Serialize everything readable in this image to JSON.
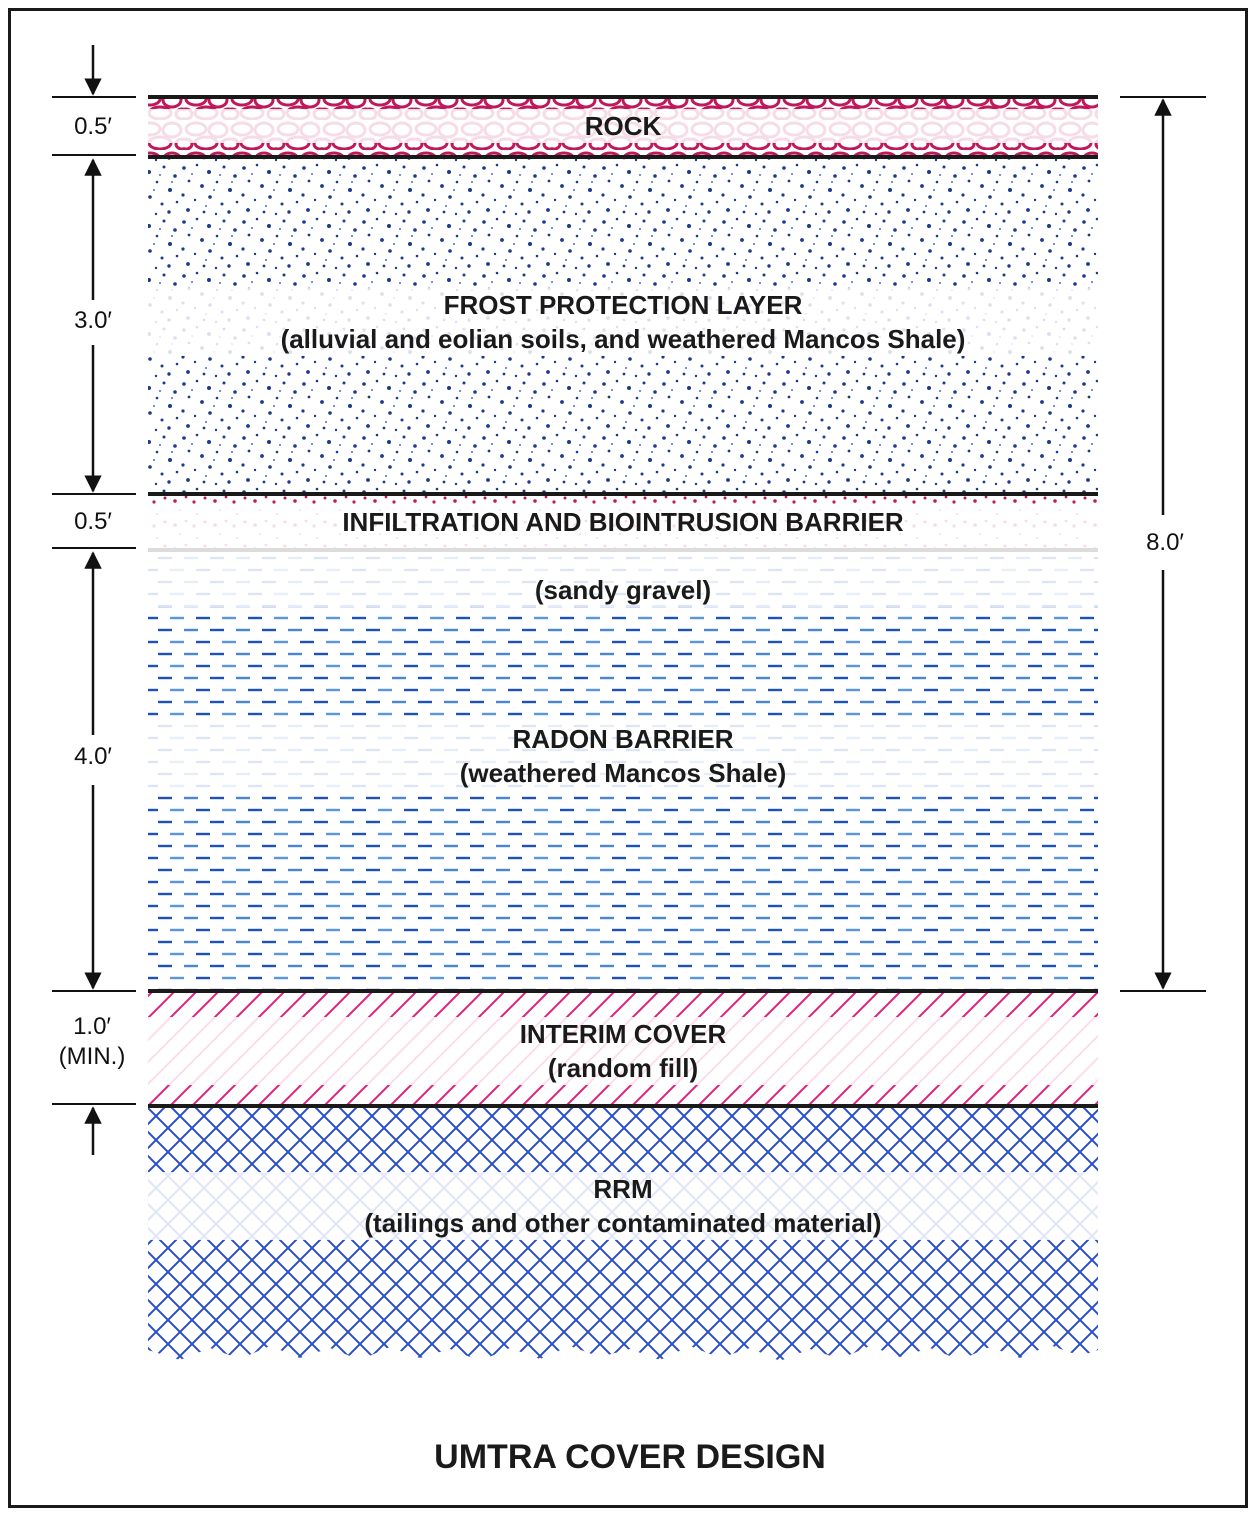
{
  "title": "UMTRA COVER DESIGN",
  "layers": [
    {
      "id": "rock",
      "name": "ROCK",
      "description": "",
      "thickness": "0.5′",
      "color": "#c0185a"
    },
    {
      "id": "frost",
      "name": "FROST PROTECTION LAYER",
      "description": "(alluvial and eolian soils, and weathered Mancos Shale)",
      "thickness": "3.0′",
      "color": "#1a3a8c"
    },
    {
      "id": "infiltration",
      "name": "INFILTRATION AND BIOINTRUSION BARRIER",
      "description": "(sandy gravel)",
      "thickness": "0.5′",
      "color": "#c0185a"
    },
    {
      "id": "radon",
      "name": "RADON BARRIER",
      "description": "(weathered Mancos Shale)",
      "thickness": "4.0′",
      "color": "#2a5ac8"
    },
    {
      "id": "interim",
      "name": "INTERIM COVER",
      "description": "(random fill)",
      "thickness_line1": "1.0′",
      "thickness_line2": "(MIN.)",
      "color": "#e0207a"
    },
    {
      "id": "rrm",
      "name": "RRM",
      "description": "(tailings and other contaminated material)",
      "color": "#2a4ec8"
    }
  ],
  "total_thickness": "8.0′"
}
